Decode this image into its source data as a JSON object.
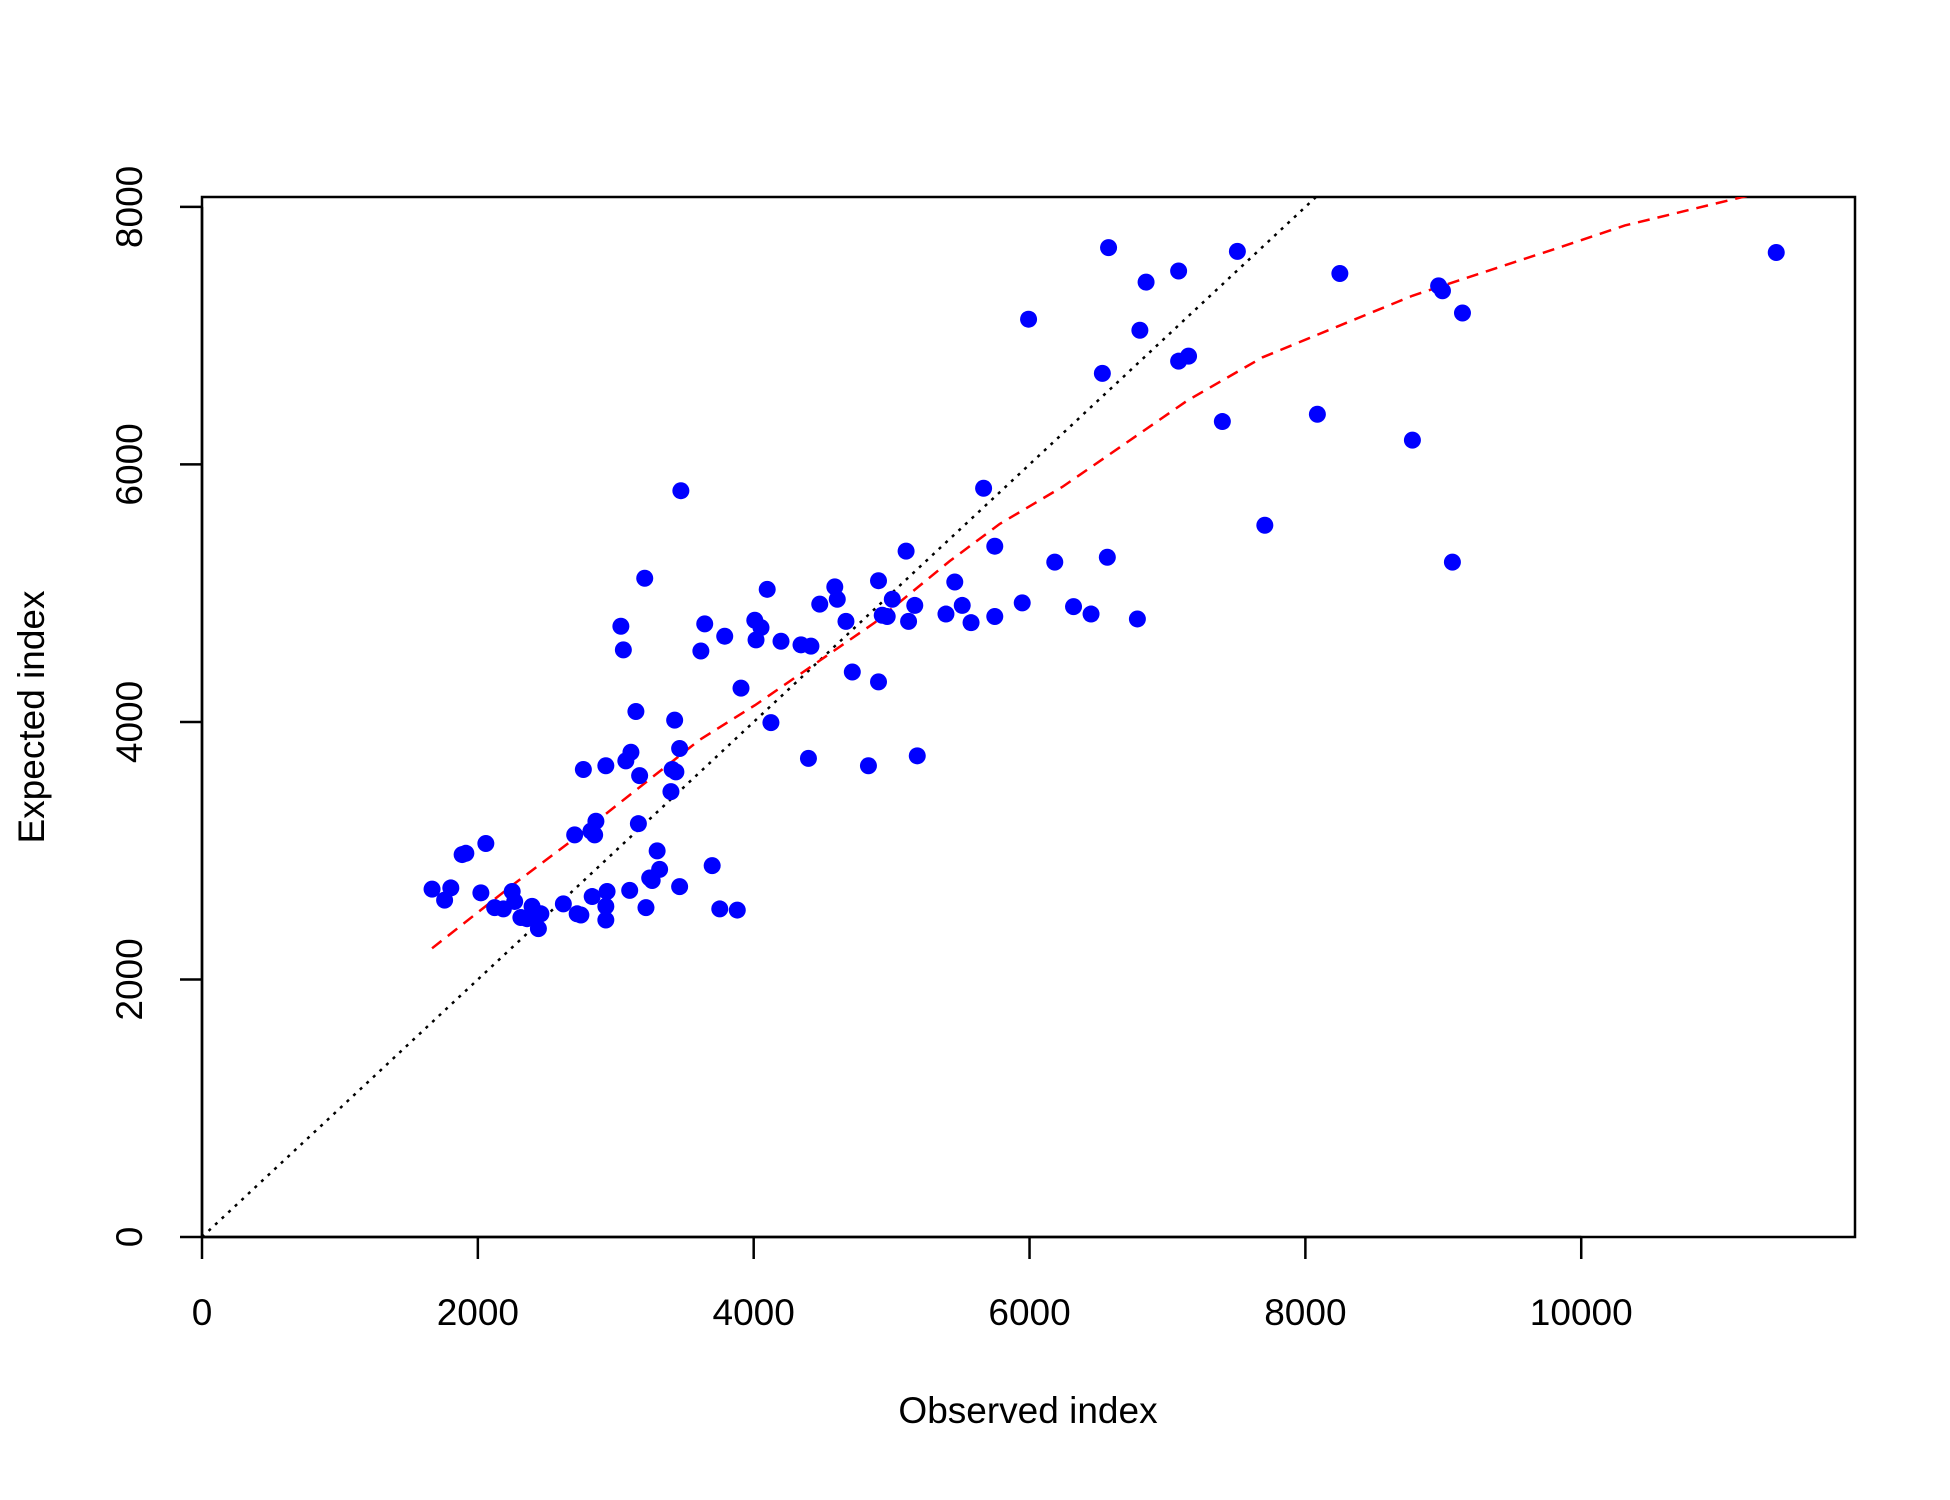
{
  "chart_data": {
    "type": "scatter",
    "x_label": "Observed index",
    "y_label": "Expected index",
    "xlim": [
      0,
      11985
    ],
    "ylim": [
      0,
      8077
    ],
    "xticks": [
      0,
      2000,
      4000,
      6000,
      8000,
      10000
    ],
    "yticks": [
      0,
      2000,
      4000,
      6000,
      8000
    ],
    "color": "#0000ff",
    "x": [
      1668,
      1759,
      1804,
      1886,
      1913,
      2022,
      2058,
      2122,
      2185,
      2249,
      2267,
      2312,
      2357,
      2393,
      2412,
      2439,
      2457,
      2620,
      2702,
      2720,
      2747,
      2765,
      2820,
      2829,
      2856,
      2847,
      2928,
      2937,
      2928,
      2928,
      3037,
      3055,
      3073,
      3101,
      3110,
      3146,
      3173,
      3164,
      3210,
      3219,
      3246,
      3264,
      3300,
      3318,
      3409,
      3400,
      3427,
      3463,
      3472,
      3463,
      3436,
      3617,
      3645,
      3699,
      3754,
      3790,
      3881,
      3908,
      4008,
      4017,
      4053,
      4098,
      4125,
      4198,
      4343,
      4415,
      4397,
      4479,
      4588,
      4606,
      4669,
      4715,
      4832,
      4905,
      4905,
      4932,
      4968,
      5005,
      5105,
      5123,
      5168,
      5186,
      5394,
      5458,
      5512,
      5576,
      5667,
      5748,
      5748,
      5947,
      5993,
      6183,
      6319,
      6446,
      6528,
      6564,
      6573,
      6782,
      6800,
      6845,
      7081,
      7081,
      7153,
      7398,
      7507,
      7706,
      8087,
      8250,
      8776,
      8966,
      8994,
      9066,
      9139,
      11414
    ],
    "y": [
      2702,
      2616,
      2711,
      2970,
      2980,
      2673,
      3056,
      2558,
      2548,
      2683,
      2606,
      2481,
      2472,
      2568,
      2501,
      2395,
      2510,
      2587,
      3123,
      2510,
      2501,
      3631,
      3152,
      2644,
      3229,
      3123,
      3660,
      2683,
      2568,
      2462,
      4743,
      4560,
      3698,
      2692,
      3765,
      4081,
      3583,
      3210,
      5116,
      2558,
      2788,
      2769,
      2999,
      2855,
      3631,
      3459,
      4014,
      3794,
      5796,
      2721,
      3612,
      4551,
      4762,
      2884,
      2548,
      4666,
      2539,
      4263,
      4790,
      4637,
      4733,
      5030,
      3995,
      4627,
      4599,
      4589,
      3717,
      4915,
      5049,
      4953,
      4781,
      4388,
      3660,
      5097,
      4311,
      4829,
      4819,
      4953,
      5327,
      4781,
      4905,
      3737,
      4838,
      5087,
      4905,
      4771,
      5815,
      5365,
      4819,
      4925,
      7128,
      5241,
      4896,
      4838,
      6707,
      5279,
      7684,
      4800,
      7042,
      7416,
      7502,
      6802,
      6841,
      6333,
      7655,
      5528,
      6390,
      7483,
      6189,
      7387,
      7349,
      5241,
      7176,
      7646
    ],
    "fit_line": {
      "color": "#ff0000",
      "x": [
        1668,
        2249,
        2702,
        3155,
        3608,
        4008,
        4424,
        4877,
        5422,
        5784,
        6237,
        6691,
        7144,
        7688,
        8232,
        8776,
        9320,
        9864,
        10317,
        11414
      ],
      "y": [
        2242,
        2731,
        3095,
        3478,
        3861,
        4129,
        4436,
        4771,
        5250,
        5538,
        5825,
        6160,
        6496,
        6831,
        7071,
        7310,
        7502,
        7693,
        7856,
        8140
      ]
    },
    "reference_line": {
      "intercept": 0,
      "slope": 1,
      "color": "#000000"
    }
  }
}
